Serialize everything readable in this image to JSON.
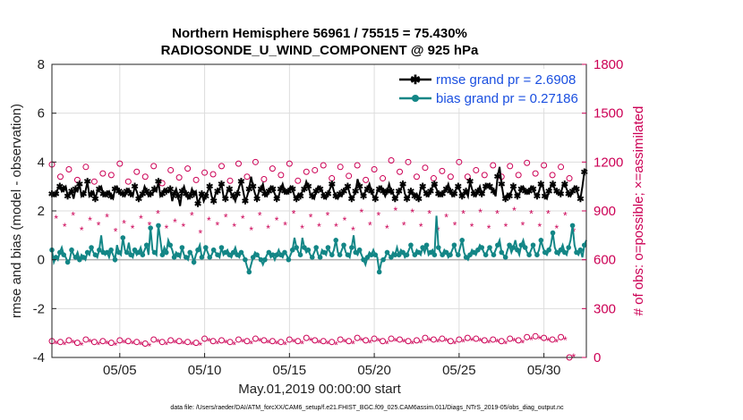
{
  "chart_data": {
    "type": "line",
    "title_line1": "Northern Hemisphere 56961 / 75515 = 75.430%",
    "title_line2": "RADIOSONDE_U_WIND_COMPONENT @ 925 hPa",
    "xlabel": "May.01,2019 00:00:00 start",
    "ylabel": "rmse and bias (model - observation)",
    "ylabel_right": "# of obs: o=possible; ×=assimilated",
    "xlim": [
      0,
      31.5
    ],
    "ylim": [
      -4,
      8
    ],
    "ylim_right": [
      0,
      1800
    ],
    "x_ticks": [
      4,
      9,
      14,
      19,
      24,
      29
    ],
    "x_tick_labels": [
      "05/05",
      "05/10",
      "05/15",
      "05/20",
      "05/25",
      "05/30"
    ],
    "y_ticks": [
      -4,
      -2,
      0,
      2,
      4,
      6,
      8
    ],
    "y_tick_labels": [
      "-4",
      "-2",
      "0",
      "2",
      "4",
      "6",
      "8"
    ],
    "y_ticks_right": [
      0,
      300,
      600,
      900,
      1200,
      1500,
      1800
    ],
    "y_tick_labels_right": [
      "0",
      "300",
      "600",
      "900",
      "1200",
      "1500",
      "1800"
    ],
    "grid": true,
    "legend_position": "top-right",
    "legend": [
      {
        "label": "rmse grand pr = 2.6908",
        "color": "#000000"
      },
      {
        "label": "bias grand pr = 0.27186",
        "color": "#138686"
      }
    ],
    "footnote": "data file: /Users/raeder/DAI/ATM_forcXX/CAM6_setup/f.e21.FHIST_BGC.f09_025.CAM6assim.011/Diags_NTrS_2019-05/obs_diag_output.nc",
    "colors": {
      "rmse": "#000000",
      "bias": "#138686",
      "obs": "#cc0055",
      "zero_line": "#b0b0b0",
      "grid": "#dddddd"
    },
    "rmse_values": [
      2.7,
      2.6,
      2.7,
      2.9,
      3.0,
      2.8,
      2.9,
      3.0,
      2.6,
      2.7,
      2.8,
      2.5,
      2.9,
      2.8,
      3.1,
      2.6,
      2.7,
      2.8,
      3.2,
      2.6,
      2.7,
      2.8,
      2.5,
      2.8,
      2.9,
      3.0,
      2.7,
      2.6,
      2.7,
      2.8,
      2.6,
      2.5,
      2.9,
      3.0,
      2.8,
      2.7,
      2.7,
      2.6,
      2.8,
      2.9,
      2.7,
      2.6,
      3.0,
      2.8,
      2.5,
      2.6,
      2.7,
      3.0,
      2.8,
      2.6,
      2.7,
      2.7,
      2.9,
      2.8,
      3.2,
      2.6,
      2.7,
      2.9,
      2.8,
      2.8,
      2.9,
      2.4,
      2.7,
      2.9,
      2.6,
      2.2,
      2.8,
      3.0,
      2.7,
      2.5,
      2.6,
      2.9,
      2.7,
      2.8,
      2.3,
      2.5,
      2.7,
      2.4,
      2.6,
      2.8,
      3.0,
      2.6,
      2.4,
      2.7,
      2.8,
      2.9,
      3.1,
      2.6,
      2.5,
      2.8,
      2.9,
      2.7,
      2.6,
      2.4,
      2.7,
      3.0,
      3.2,
      2.8,
      2.4,
      2.6,
      2.9,
      3.4,
      3.0,
      2.7,
      2.5,
      2.8,
      2.9,
      3.1,
      2.7,
      2.6,
      2.8,
      3.0,
      2.9,
      2.7,
      2.5,
      2.6,
      2.9,
      3.1,
      2.8,
      2.7,
      2.8,
      3.0,
      2.9,
      2.6,
      2.5,
      2.7,
      2.6,
      2.8,
      2.9,
      3.2,
      3.0,
      2.7,
      2.6,
      2.5,
      2.8,
      3.0,
      2.9,
      2.8,
      2.6,
      2.5,
      2.7,
      2.9,
      3.1,
      2.8,
      2.6,
      2.5,
      2.7,
      2.6,
      2.8,
      2.9,
      3.0,
      2.7,
      2.5,
      2.6,
      2.8,
      3.3,
      3.0,
      2.7,
      2.6,
      2.8,
      2.9,
      3.1,
      2.8,
      2.6,
      2.5,
      2.8,
      2.9,
      3.0,
      2.8,
      2.6,
      2.8,
      3.1,
      2.8,
      2.7,
      2.5,
      2.6,
      2.8,
      2.9,
      3.1,
      2.7,
      2.5,
      2.6,
      2.8,
      2.7,
      2.6,
      2.7,
      2.5,
      2.9,
      3.0,
      2.8,
      2.7,
      2.6,
      2.8,
      3.0,
      3.1,
      2.9,
      2.7,
      2.6,
      2.7,
      2.8,
      2.9,
      3.1,
      2.8,
      2.6,
      2.7,
      2.9,
      3.0,
      2.8,
      2.6,
      2.7,
      2.8,
      2.6,
      3.2,
      2.9,
      2.7,
      2.6,
      2.8,
      3.0,
      2.7,
      2.8,
      3.0,
      3.1,
      3.0,
      2.9,
      2.8,
      2.6,
      3.4,
      3.8,
      3.1,
      2.6,
      2.5,
      2.7,
      2.6,
      2.8,
      3.0,
      2.8,
      2.6,
      2.7,
      2.9,
      3.0,
      2.8,
      2.7,
      2.8,
      3.0,
      2.9,
      2.7,
      2.6,
      2.8,
      3.1,
      3.0,
      2.6,
      2.5,
      2.8,
      3.0,
      3.1,
      2.9,
      2.8,
      2.7,
      2.7,
      3.0,
      3.1,
      2.9,
      2.7,
      2.6,
      2.8,
      3.0,
      2.9,
      2.6,
      2.5,
      3.0,
      3.6,
      3.7
    ],
    "bias_values": [
      0.4,
      -0.1,
      0.1,
      0.0,
      0.3,
      0.5,
      0.2,
      0.1,
      -0.1,
      0.0,
      0.4,
      0.2,
      0.1,
      0.3,
      0.0,
      0.2,
      0.1,
      0.0,
      0.3,
      0.2,
      0.5,
      0.3,
      0.2,
      0.1,
      0.4,
      1.0,
      0.3,
      0.2,
      0.3,
      0.1,
      0.4,
      0.2,
      0.0,
      0.6,
      0.3,
      0.2,
      0.9,
      0.4,
      0.3,
      0.7,
      0.2,
      0.1,
      0.4,
      0.2,
      0.3,
      0.5,
      0.2,
      0.4,
      0.6,
      0.2,
      1.3,
      0.4,
      0.3,
      0.2,
      1.4,
      0.8,
      0.2,
      0.5,
      0.3,
      0.8,
      0.6,
      0.4,
      0.1,
      0.3,
      0.2,
      0.1,
      0.5,
      0.2,
      0.1,
      0.0,
      0.3,
      0.2,
      -0.1,
      0.2,
      0.4,
      0.6,
      0.1,
      0.2,
      0.5,
      0.3,
      0.1,
      0.2,
      0.4,
      0.3,
      0.2,
      0.1,
      0.5,
      0.2,
      0.3,
      0.4,
      0.2,
      0.1,
      0.3,
      0.5,
      0.2,
      0.1,
      0.3,
      0.2,
      0.0,
      -0.3,
      -0.5,
      -0.2,
      0.1,
      0.3,
      0.2,
      0.1,
      0.0,
      -0.2,
      0.0,
      0.2,
      0.3,
      0.1,
      0.2,
      0.0,
      0.2,
      0.4,
      0.2,
      0.1,
      0.3,
      0.2,
      0.0,
      0.2,
      0.4,
      0.9,
      0.5,
      0.3,
      0.2,
      0.9,
      0.5,
      0.3,
      0.4,
      0.2,
      0.1,
      0.3,
      0.5,
      0.2,
      0.1,
      0.4,
      0.3,
      0.2,
      0.5,
      0.3,
      0.2,
      0.4,
      0.8,
      0.3,
      0.2,
      0.4,
      0.6,
      0.3,
      0.2,
      0.1,
      0.5,
      1.0,
      0.3,
      0.2,
      0.4,
      0.2,
      0.0,
      -0.2,
      0.1,
      0.3,
      0.2,
      0.4,
      0.2,
      0.1,
      -0.5,
      -0.1,
      0.0,
      0.1,
      0.3,
      0.2,
      0.1,
      0.3,
      0.2,
      0.5,
      0.2,
      0.4,
      0.3,
      0.1,
      0.2,
      0.4,
      0.6,
      0.3,
      0.2,
      0.4,
      0.3,
      0.2,
      0.5,
      0.3,
      0.6,
      0.2,
      0.3,
      0.4,
      0.2,
      1.8,
      0.5,
      0.3,
      0.2,
      0.4,
      0.3,
      0.1,
      0.2,
      0.4,
      0.6,
      0.3,
      0.2,
      0.5,
      0.8,
      0.3,
      0.1,
      0.0,
      0.2,
      0.4,
      0.3,
      0.2,
      0.4,
      0.6,
      0.5,
      0.3,
      0.2,
      0.4,
      0.5,
      0.3,
      0.2,
      0.4,
      0.6,
      0.8,
      0.3,
      0.2,
      0.1,
      0.4,
      0.6,
      0.3,
      0.5,
      0.8,
      0.4,
      0.2,
      0.6,
      0.8,
      0.5,
      0.3,
      0.2,
      0.4,
      0.6,
      0.3,
      0.2,
      0.4,
      0.8,
      0.5,
      0.3,
      0.2,
      0.4,
      0.6,
      1.1,
      0.5,
      0.3,
      0.2,
      0.4,
      0.6,
      0.3,
      0.2,
      0.5,
      0.8,
      1.4,
      0.6,
      0.3,
      0.2,
      0.4,
      0.1,
      0.6,
      0.8
    ],
    "obs_possible_tall": [
      1185,
      1110,
      1155,
      1090,
      1170,
      1080,
      1130,
      1120,
      1190,
      1080,
      1140,
      1110,
      1175,
      1070,
      1150,
      1105,
      1160,
      1090,
      1135,
      1125,
      1175,
      1085,
      1190,
      1110,
      1200,
      1095,
      1160,
      1120,
      1190,
      1085,
      1140,
      1150,
      1180,
      1100,
      1170,
      1115,
      1180,
      1090,
      1155,
      1100,
      1210,
      1140,
      1200,
      1110,
      1165,
      1100,
      1145,
      1110,
      1200,
      1110,
      1150,
      1120,
      1180,
      1110,
      1175,
      1120,
      1195,
      1130,
      1180,
      1120,
      1170,
      1100
    ],
    "obs_assim_tall": [
      850,
      800,
      870,
      780,
      840,
      810,
      860,
      770,
      820,
      790,
      850,
      810,
      880,
      790,
      830,
      800,
      870,
      760,
      840,
      810,
      860,
      800,
      850,
      780,
      870,
      790,
      840,
      810,
      880,
      790,
      860,
      800,
      870,
      800,
      840,
      780,
      890,
      810,
      870,
      790,
      900,
      810,
      890,
      800,
      880,
      780,
      860,
      810,
      880,
      800,
      890,
      790,
      880,
      800,
      900,
      810,
      880,
      800,
      880,
      790,
      870,
      770
    ],
    "obs_possible_low": [
      100,
      95,
      105,
      90,
      110,
      95,
      100,
      90,
      105,
      100,
      95,
      85,
      110,
      95,
      105,
      100,
      95,
      90,
      115,
      100,
      105,
      95,
      110,
      100,
      115,
      105,
      100,
      95,
      110,
      100,
      120,
      105,
      100,
      95,
      110,
      100,
      120,
      105,
      115,
      100,
      115,
      110,
      100,
      105,
      120,
      110,
      115,
      100,
      110,
      120,
      115,
      105,
      110,
      100,
      115,
      105,
      125,
      130,
      120,
      110,
      125,
      0
    ],
    "obs_assim_low": [
      80,
      75,
      85,
      70,
      90,
      75,
      80,
      70,
      85,
      80,
      75,
      65,
      90,
      75,
      85,
      80,
      75,
      70,
      95,
      80,
      85,
      75,
      90,
      80,
      95,
      85,
      80,
      75,
      90,
      80,
      100,
      85,
      80,
      75,
      90,
      80,
      100,
      85,
      95,
      80,
      95,
      90,
      80,
      85,
      100,
      90,
      95,
      80,
      90,
      100,
      95,
      85,
      90,
      80,
      95,
      85,
      105,
      110,
      100,
      90,
      105,
      0
    ]
  }
}
